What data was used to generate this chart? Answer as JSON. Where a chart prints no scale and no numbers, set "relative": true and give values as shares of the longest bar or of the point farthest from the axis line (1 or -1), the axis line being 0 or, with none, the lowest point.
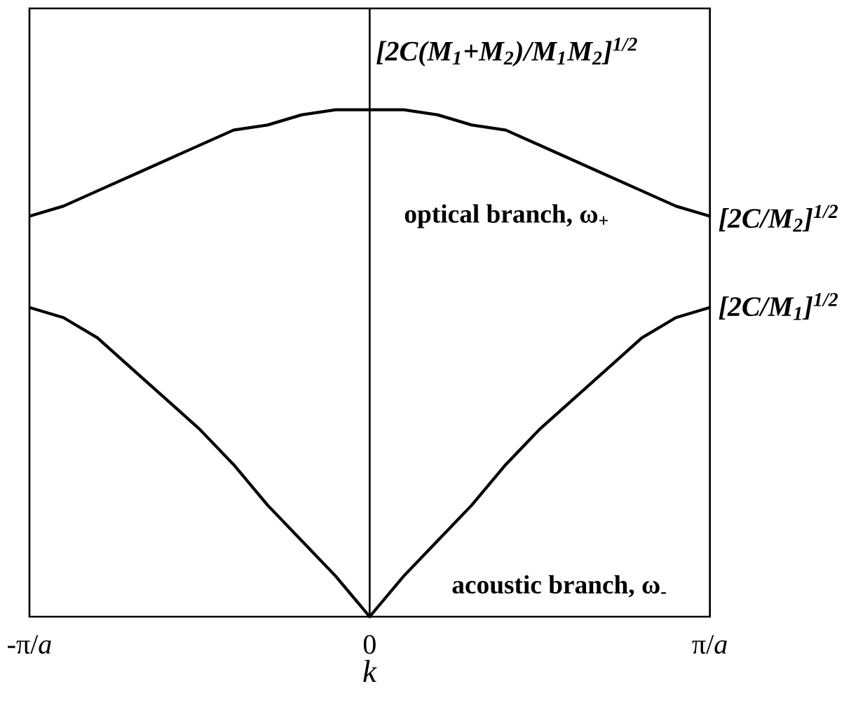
{
  "chart_data": {
    "type": "line",
    "relative": true,
    "xlabel": "*k*",
    "categories": [
      "-π/*a*",
      null,
      null,
      null,
      null,
      null,
      null,
      null,
      null,
      null,
      "0",
      null,
      null,
      null,
      null,
      null,
      null,
      null,
      null,
      null,
      "π/*a*"
    ],
    "series": [
      {
        "name": "optical branch, ω$_{+}$",
        "color": "#000000",
        "values": [
          0.79,
          0.81,
          0.84,
          0.87,
          0.9,
          0.93,
          0.96,
          0.97,
          0.99,
          1.0,
          1,
          1.0,
          0.99,
          0.97,
          0.96,
          0.93,
          0.9,
          0.87,
          0.84,
          0.81,
          0.79
        ]
      },
      {
        "name": "acoustic branch, ω$_{-}$",
        "color": "#000000",
        "values": [
          0.61,
          0.59,
          0.55,
          0.49,
          0.43,
          0.37,
          0.3,
          0.22,
          0.15,
          0.08,
          0,
          0.08,
          0.15,
          0.22,
          0.3,
          0.37,
          0.43,
          0.49,
          0.55,
          0.59,
          0.61
        ]
      }
    ],
    "ref_lines": [
      {
        "axis": "x",
        "value": "0"
      }
    ],
    "annotations": [
      "[2C(M$_{1}$+M$_{2}$)/M$_{1}$M$_{2}$]$^{1/2}$",
      "[2C/M$_{2}$]$^{1/2}$",
      "[2C/M$_{1}$]$^{1/2}$"
    ],
    "legend": false,
    "marker": "none",
    "line_style": "solid"
  }
}
